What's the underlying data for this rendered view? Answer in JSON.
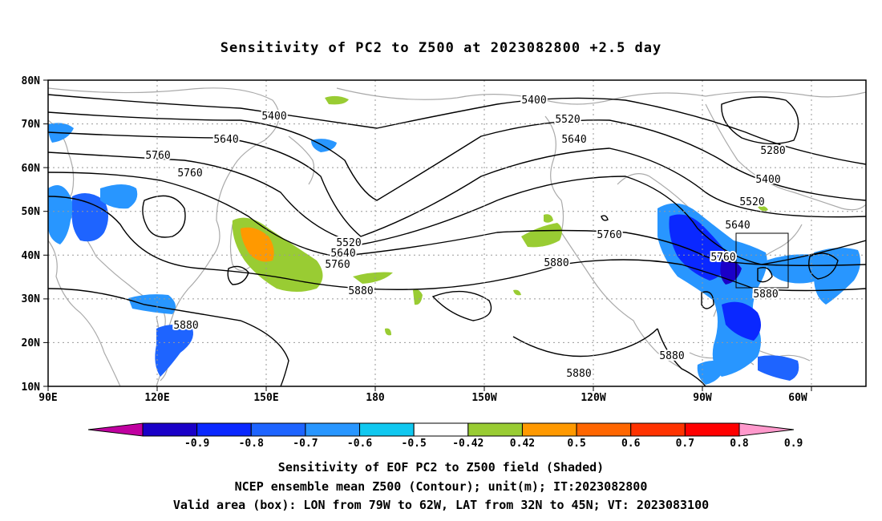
{
  "title": "Sensitivity of PC2 to Z500 at 2023082800 +2.5 day",
  "lat_labels": [
    "80N",
    "70N",
    "60N",
    "50N",
    "40N",
    "30N",
    "20N",
    "10N"
  ],
  "lon_labels": [
    "90E",
    "120E",
    "150E",
    "180",
    "150W",
    "120W",
    "90W",
    "60W"
  ],
  "contour_labels": [
    "5400",
    "5640",
    "5760",
    "5760",
    "5520",
    "5640",
    "5760",
    "5880",
    "5400",
    "5520",
    "5640",
    "5760",
    "5880",
    "5280",
    "5400",
    "5520",
    "5640",
    "5760",
    "5880",
    "5880",
    "5880",
    "5880"
  ],
  "colorbar": {
    "labels": [
      "-0.9",
      "-0.8",
      "-0.7",
      "-0.6",
      "-0.5",
      "-0.42",
      "0.42",
      "0.5",
      "0.6",
      "0.7",
      "0.8",
      "0.9"
    ],
    "colors": [
      "#c000a0",
      "#1a00c8",
      "#0a28ff",
      "#1e64ff",
      "#2896ff",
      "#10c8f0",
      "#ffffff",
      "#99cc33",
      "#ff9900",
      "#ff6600",
      "#ff3300",
      "#ff0000",
      "#ff99cc"
    ]
  },
  "captions": [
    "Sensitivity of EOF PC2 to Z500 field (Shaded)",
    "NCEP ensemble mean Z500 (Contour); unit(m); IT:2023082800",
    "Valid area (box): LON from 79W to 62W, LAT from 32N to 45N; VT: 2023083100"
  ]
}
